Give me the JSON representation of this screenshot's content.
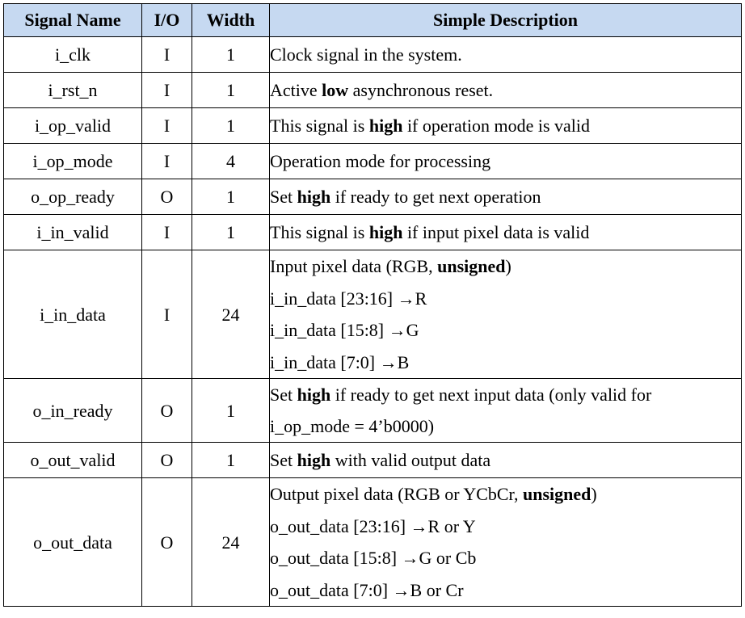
{
  "table": {
    "headers": {
      "name": "Signal Name",
      "io": "I/O",
      "width": "Width",
      "desc": "Simple Description"
    },
    "rows": [
      {
        "name": "i_clk",
        "io": "I",
        "width": "1",
        "desc": [
          [
            {
              "t": "Clock signal in the system.",
              "b": false
            }
          ]
        ]
      },
      {
        "name": "i_rst_n",
        "io": "I",
        "width": "1",
        "desc": [
          [
            {
              "t": "Active ",
              "b": false
            },
            {
              "t": "low",
              "b": true
            },
            {
              "t": " asynchronous reset.",
              "b": false
            }
          ]
        ]
      },
      {
        "name": "i_op_valid",
        "io": "I",
        "width": "1",
        "desc": [
          [
            {
              "t": "This signal is ",
              "b": false
            },
            {
              "t": "high",
              "b": true
            },
            {
              "t": " if operation mode is valid",
              "b": false
            }
          ]
        ]
      },
      {
        "name": "i_op_mode",
        "io": "I",
        "width": "4",
        "desc": [
          [
            {
              "t": "Operation mode for processing",
              "b": false
            }
          ]
        ]
      },
      {
        "name": "o_op_ready",
        "io": "O",
        "width": "1",
        "desc": [
          [
            {
              "t": "Set ",
              "b": false
            },
            {
              "t": "high",
              "b": true
            },
            {
              "t": " if ready to get next operation",
              "b": false
            }
          ]
        ]
      },
      {
        "name": "i_in_valid",
        "io": "I",
        "width": "1",
        "desc": [
          [
            {
              "t": "This signal is ",
              "b": false
            },
            {
              "t": "high",
              "b": true
            },
            {
              "t": " if input pixel data is valid",
              "b": false
            }
          ]
        ]
      },
      {
        "name": "i_in_data",
        "io": "I",
        "width": "24",
        "desc": [
          [
            {
              "t": "Input pixel data (RGB, ",
              "b": false
            },
            {
              "t": "unsigned",
              "b": true
            },
            {
              "t": ")",
              "b": false
            }
          ],
          [
            {
              "t": "i_in_data [23:16] →R",
              "b": false
            }
          ],
          [
            {
              "t": "i_in_data [15:8] →G",
              "b": false
            }
          ],
          [
            {
              "t": "i_in_data [7:0] →B",
              "b": false
            }
          ]
        ]
      },
      {
        "name": "o_in_ready",
        "io": "O",
        "width": "1",
        "desc": [
          [
            {
              "t": "Set ",
              "b": false
            },
            {
              "t": "high",
              "b": true
            },
            {
              "t": " if ready to get next input data (only valid for",
              "b": false
            }
          ],
          [
            {
              "t": "i_op_mode = 4’b0000)",
              "b": false
            }
          ]
        ]
      },
      {
        "name": "o_out_valid",
        "io": "O",
        "width": "1",
        "desc": [
          [
            {
              "t": "Set ",
              "b": false
            },
            {
              "t": "high",
              "b": true
            },
            {
              "t": " with valid output data",
              "b": false
            }
          ]
        ]
      },
      {
        "name": "o_out_data",
        "io": "O",
        "width": "24",
        "desc": [
          [
            {
              "t": "Output pixel data (RGB or YCbCr, ",
              "b": false
            },
            {
              "t": "unsigned",
              "b": true
            },
            {
              "t": ")",
              "b": false
            }
          ],
          [
            {
              "t": "o_out_data [23:16] →R or Y",
              "b": false
            }
          ],
          [
            {
              "t": "o_out_data [15:8] →G or Cb",
              "b": false
            }
          ],
          [
            {
              "t": "o_out_data [7:0] →B or Cr",
              "b": false
            }
          ]
        ]
      }
    ],
    "colors": {
      "header_bg": "#c6d9f1",
      "border": "#000000",
      "text": "#000000"
    }
  }
}
